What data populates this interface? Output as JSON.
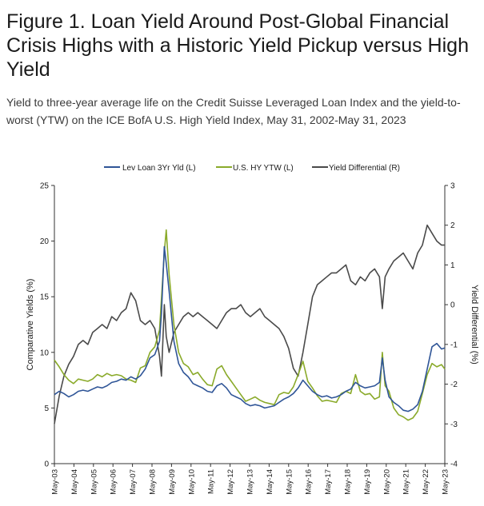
{
  "header": {
    "title": "Figure 1. Loan Yield Around Post-Global Financial Crisis Highs with a Historic Yield Pickup versus High Yield",
    "subtitle": "Yield to three-year average life on the Credit Suisse Leveraged Loan Index and the yield-to-worst (YTW) on the ICE BofA U.S. High Yield Index, May 31, 2002-May 31, 2023"
  },
  "chart_data": {
    "type": "line",
    "ylabel_left": "Comparative Yields (%)",
    "ylabel_right": "Yield Differential (%)",
    "y_left_range": [
      0,
      25
    ],
    "y_right_range": [
      -4,
      3
    ],
    "y_left_ticks": [
      "0",
      "5",
      "10",
      "15",
      "20",
      "25"
    ],
    "y_right_ticks": [
      "-4",
      "-3",
      "-2",
      "-1",
      "0",
      "1",
      "2",
      "3"
    ],
    "x_ticks": [
      "May-03",
      "May-04",
      "May-05",
      "May-06",
      "May-07",
      "May-08",
      "May-09",
      "May-10",
      "May-11",
      "May-12",
      "May-13",
      "May-14",
      "May-15",
      "May-16",
      "May-17",
      "May-18",
      "May-19",
      "May-20",
      "May-21",
      "May-22",
      "May-23"
    ],
    "grid": false,
    "legend_position": "top",
    "series": [
      {
        "name": "Lev Loan 3Yr Yld (L)",
        "axis": "left",
        "color": "#2f5597",
        "x": [
          2003.0,
          2003.25,
          2003.5,
          2003.75,
          2004.0,
          2004.25,
          2004.5,
          2004.75,
          2005.0,
          2005.25,
          2005.5,
          2005.75,
          2006.0,
          2006.25,
          2006.5,
          2006.75,
          2007.0,
          2007.25,
          2007.5,
          2007.75,
          2008.0,
          2008.25,
          2008.5,
          2008.6,
          2008.75,
          2008.85,
          2009.0,
          2009.25,
          2009.5,
          2009.75,
          2010.0,
          2010.25,
          2010.5,
          2010.75,
          2011.0,
          2011.25,
          2011.5,
          2011.75,
          2012.0,
          2012.25,
          2012.5,
          2012.75,
          2013.0,
          2013.25,
          2013.5,
          2013.75,
          2014.0,
          2014.25,
          2014.5,
          2014.75,
          2015.0,
          2015.25,
          2015.5,
          2015.75,
          2016.0,
          2016.25,
          2016.5,
          2016.75,
          2017.0,
          2017.25,
          2017.5,
          2017.75,
          2018.0,
          2018.25,
          2018.5,
          2018.75,
          2019.0,
          2019.25,
          2019.5,
          2019.75,
          2020.0,
          2020.15,
          2020.3,
          2020.5,
          2020.75,
          2021.0,
          2021.25,
          2021.5,
          2021.75,
          2022.0,
          2022.25,
          2022.5,
          2022.75,
          2023.0,
          2023.25,
          2023.42
        ],
        "values": [
          6.2,
          6.5,
          6.3,
          6.0,
          6.2,
          6.5,
          6.6,
          6.5,
          6.7,
          6.9,
          6.8,
          7.0,
          7.3,
          7.4,
          7.6,
          7.5,
          7.8,
          7.6,
          7.9,
          8.5,
          9.5,
          9.8,
          11.0,
          13.5,
          19.5,
          18.0,
          15.5,
          11.0,
          9.0,
          8.2,
          7.8,
          7.2,
          7.0,
          6.8,
          6.5,
          6.4,
          7.0,
          7.2,
          6.8,
          6.2,
          6.0,
          5.8,
          5.4,
          5.2,
          5.3,
          5.2,
          5.0,
          5.1,
          5.2,
          5.5,
          5.8,
          6.0,
          6.3,
          6.8,
          7.5,
          7.0,
          6.5,
          6.2,
          6.0,
          6.1,
          5.9,
          6.0,
          6.2,
          6.5,
          6.7,
          7.3,
          7.0,
          6.8,
          6.9,
          7.0,
          7.3,
          9.5,
          7.5,
          6.0,
          5.5,
          5.2,
          4.8,
          4.7,
          4.9,
          5.3,
          6.5,
          8.5,
          10.5,
          10.8,
          10.3,
          10.4
        ]
      },
      {
        "name": "U.S. HY YTW (L)",
        "axis": "left",
        "color": "#8aaa2a",
        "x": [
          2003.0,
          2003.25,
          2003.5,
          2003.75,
          2004.0,
          2004.25,
          2004.5,
          2004.75,
          2005.0,
          2005.25,
          2005.5,
          2005.75,
          2006.0,
          2006.25,
          2006.5,
          2006.75,
          2007.0,
          2007.25,
          2007.5,
          2007.75,
          2008.0,
          2008.25,
          2008.5,
          2008.75,
          2008.85,
          2009.0,
          2009.25,
          2009.5,
          2009.75,
          2010.0,
          2010.25,
          2010.5,
          2010.75,
          2011.0,
          2011.25,
          2011.5,
          2011.75,
          2012.0,
          2012.25,
          2012.5,
          2012.75,
          2013.0,
          2013.25,
          2013.5,
          2013.75,
          2014.0,
          2014.25,
          2014.5,
          2014.75,
          2015.0,
          2015.25,
          2015.5,
          2015.75,
          2016.0,
          2016.25,
          2016.5,
          2016.75,
          2017.0,
          2017.25,
          2017.5,
          2017.75,
          2018.0,
          2018.25,
          2018.5,
          2018.75,
          2019.0,
          2019.25,
          2019.5,
          2019.75,
          2020.0,
          2020.15,
          2020.3,
          2020.5,
          2020.75,
          2021.0,
          2021.25,
          2021.5,
          2021.75,
          2022.0,
          2022.25,
          2022.5,
          2022.75,
          2023.0,
          2023.25,
          2023.42
        ],
        "values": [
          9.3,
          8.7,
          8.0,
          7.5,
          7.2,
          7.6,
          7.5,
          7.4,
          7.6,
          8.0,
          7.8,
          8.1,
          7.9,
          8.0,
          7.9,
          7.6,
          7.5,
          7.3,
          8.6,
          8.8,
          10.0,
          10.5,
          12.0,
          19.0,
          21.0,
          17.0,
          12.5,
          10.0,
          9.0,
          8.7,
          8.0,
          8.2,
          7.6,
          7.1,
          7.0,
          8.5,
          8.8,
          8.0,
          7.4,
          6.8,
          6.2,
          5.6,
          5.8,
          6.0,
          5.7,
          5.5,
          5.4,
          5.3,
          6.2,
          6.4,
          6.3,
          6.9,
          8.0,
          9.2,
          7.4,
          6.8,
          6.1,
          5.6,
          5.7,
          5.6,
          5.5,
          6.3,
          6.5,
          6.3,
          8.0,
          6.5,
          6.2,
          6.3,
          5.8,
          6.0,
          10.0,
          7.0,
          6.5,
          5.0,
          4.4,
          4.2,
          3.9,
          4.1,
          4.7,
          6.3,
          8.0,
          9.0,
          8.7,
          8.9,
          8.5
        ]
      },
      {
        "name": "Yield Differential (R)",
        "axis": "right",
        "color": "#4a4a4a",
        "x": [
          2003.0,
          2003.25,
          2003.5,
          2003.75,
          2004.0,
          2004.25,
          2004.5,
          2004.75,
          2005.0,
          2005.25,
          2005.5,
          2005.75,
          2006.0,
          2006.25,
          2006.5,
          2006.75,
          2007.0,
          2007.25,
          2007.5,
          2007.75,
          2008.0,
          2008.25,
          2008.5,
          2008.6,
          2008.75,
          2008.85,
          2009.0,
          2009.25,
          2009.5,
          2009.75,
          2010.0,
          2010.25,
          2010.5,
          2010.75,
          2011.0,
          2011.25,
          2011.5,
          2011.75,
          2012.0,
          2012.25,
          2012.5,
          2012.75,
          2013.0,
          2013.25,
          2013.5,
          2013.75,
          2014.0,
          2014.25,
          2014.5,
          2014.75,
          2015.0,
          2015.25,
          2015.5,
          2015.75,
          2016.0,
          2016.25,
          2016.5,
          2016.75,
          2017.0,
          2017.25,
          2017.5,
          2017.75,
          2018.0,
          2018.25,
          2018.5,
          2018.75,
          2019.0,
          2019.25,
          2019.5,
          2019.75,
          2020.0,
          2020.15,
          2020.3,
          2020.5,
          2020.75,
          2021.0,
          2021.25,
          2021.5,
          2021.75,
          2022.0,
          2022.25,
          2022.5,
          2022.75,
          2023.0,
          2023.25,
          2023.42
        ],
        "values": [
          -3.0,
          -2.3,
          -1.8,
          -1.5,
          -1.3,
          -1.0,
          -0.9,
          -1.0,
          -0.7,
          -0.6,
          -0.5,
          -0.6,
          -0.3,
          -0.4,
          -0.2,
          -0.1,
          0.3,
          0.1,
          -0.4,
          -0.5,
          -0.4,
          -0.6,
          -1.3,
          -1.8,
          0.0,
          -0.8,
          -1.2,
          -0.7,
          -0.5,
          -0.3,
          -0.2,
          -0.3,
          -0.2,
          -0.3,
          -0.4,
          -0.5,
          -0.6,
          -0.4,
          -0.2,
          -0.1,
          -0.1,
          0.0,
          -0.2,
          -0.3,
          -0.2,
          -0.1,
          -0.3,
          -0.4,
          -0.5,
          -0.6,
          -0.8,
          -1.1,
          -1.6,
          -1.8,
          -1.2,
          -0.5,
          0.2,
          0.5,
          0.6,
          0.7,
          0.8,
          0.8,
          0.9,
          1.0,
          0.6,
          0.5,
          0.7,
          0.6,
          0.8,
          0.9,
          0.7,
          -0.1,
          0.7,
          0.9,
          1.1,
          1.2,
          1.3,
          1.1,
          0.9,
          1.3,
          1.5,
          2.0,
          1.8,
          1.6,
          1.5,
          1.5
        ]
      }
    ]
  }
}
